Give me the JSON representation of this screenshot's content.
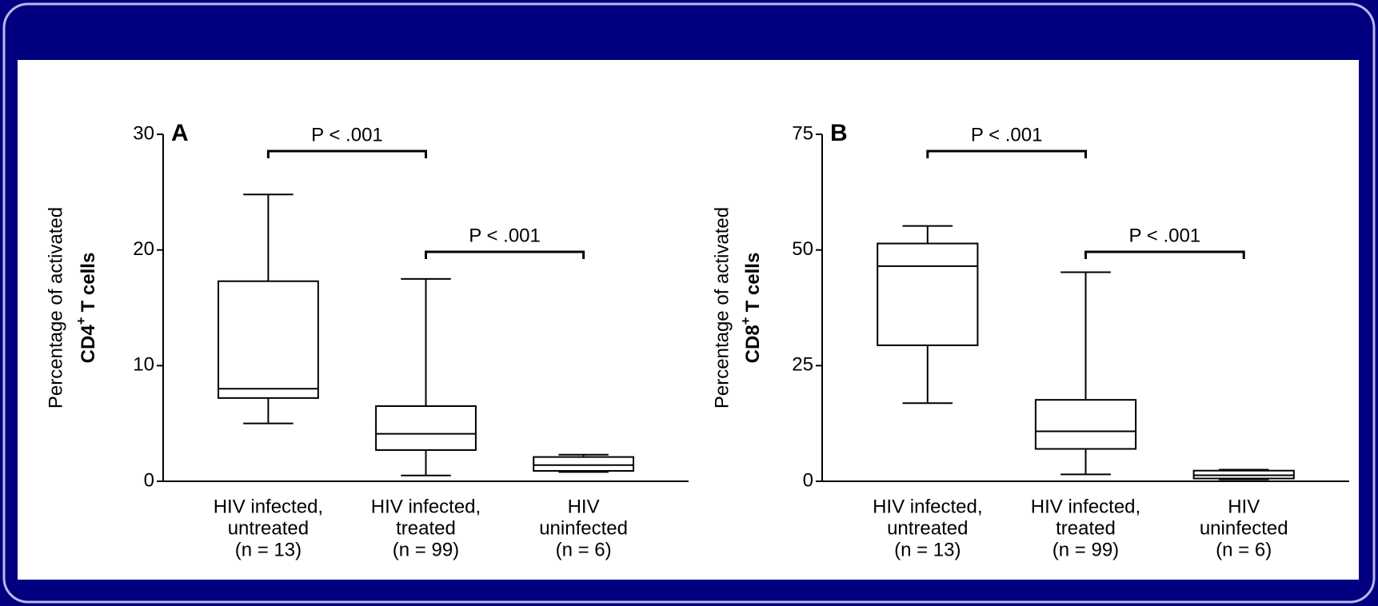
{
  "chart_data": [
    {
      "type": "box",
      "panel_label": "A",
      "ylabel": {
        "line1": "Percentage of activated",
        "line2": "CD4",
        "superscript": "+",
        "line2_end": "T cells"
      },
      "categories": [
        [
          "HIV infected,",
          "untreated",
          "(n = 13)"
        ],
        [
          "HIV infected,",
          "treated",
          "(n = 99)"
        ],
        [
          "HIV",
          "uninfected",
          "(n = 6)"
        ]
      ],
      "boxes": [
        {
          "whisker_low": 5,
          "q1": 7.2,
          "median": 8,
          "q3": 17.3,
          "whisker_high": 24.8
        },
        {
          "whisker_low": 0.5,
          "q1": 2.7,
          "median": 4.1,
          "q3": 6.5,
          "whisker_high": 17.5
        },
        {
          "whisker_low": 0.8,
          "q1": 0.9,
          "median": 1.4,
          "q3": 2.1,
          "whisker_high": 2.3
        }
      ],
      "ylim": [
        0,
        30
      ],
      "yticks": [
        0,
        10,
        20,
        30
      ],
      "color": "#000000",
      "annotations": [
        {
          "text": "P < .001",
          "between": [
            0,
            1
          ]
        },
        {
          "text": "P < .001",
          "between": [
            1,
            2
          ]
        }
      ]
    },
    {
      "type": "box",
      "panel_label": "B",
      "ylabel": {
        "line1": "Percentage of activated",
        "line2": "CD8",
        "superscript": "+",
        "line2_end": "T cells"
      },
      "categories": [
        [
          "HIV infected,",
          "untreated",
          "(n = 13)"
        ],
        [
          "HIV infected,",
          "treated",
          "(n = 99)"
        ],
        [
          "HIV",
          "uninfected",
          "(n = 6)"
        ]
      ],
      "boxes": [
        {
          "whisker_low": 16.9,
          "q1": 29.4,
          "median": 46.5,
          "q3": 51.4,
          "whisker_high": 55.2
        },
        {
          "whisker_low": 1.5,
          "q1": 7,
          "median": 10.8,
          "q3": 17.6,
          "whisker_high": 45.2
        },
        {
          "whisker_low": 0.4,
          "q1": 0.6,
          "median": 1.3,
          "q3": 2.3,
          "whisker_high": 2.5
        }
      ],
      "ylim": [
        0,
        75
      ],
      "yticks": [
        0,
        25,
        50,
        75
      ],
      "color": "#000000",
      "annotations": [
        {
          "text": "P < .001",
          "between": [
            0,
            1
          ]
        },
        {
          "text": "P < .001",
          "between": [
            1,
            2
          ]
        }
      ]
    }
  ]
}
